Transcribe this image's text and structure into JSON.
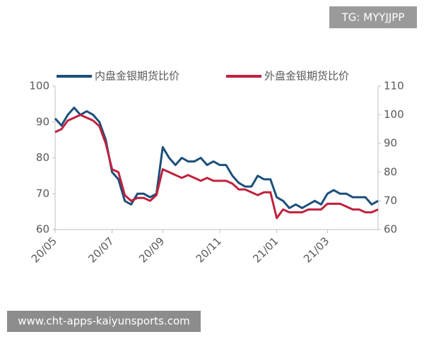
{
  "chart_data": {
    "type": "line",
    "categories": [
      "20/05",
      null,
      null,
      null,
      null,
      null,
      null,
      null,
      null,
      "20/07",
      null,
      null,
      null,
      null,
      null,
      null,
      null,
      "20/09",
      null,
      null,
      null,
      null,
      null,
      null,
      null,
      null,
      "20/11",
      null,
      null,
      null,
      null,
      null,
      null,
      null,
      null,
      "21/01",
      null,
      null,
      null,
      null,
      null,
      null,
      null,
      "21/03",
      null,
      null,
      null,
      null,
      null,
      null,
      null,
      null
    ],
    "series": [
      {
        "name": "内盘金银期货比价",
        "color": "#1b4f7a",
        "axis": "y",
        "values": [
          91,
          89,
          92,
          94,
          92,
          93,
          92,
          90,
          85,
          76,
          74,
          68,
          67,
          70,
          70,
          69,
          70,
          83,
          80,
          78,
          80,
          79,
          79,
          80,
          78,
          79,
          78,
          78,
          75,
          73,
          72,
          72,
          75,
          74,
          74,
          69,
          68,
          66,
          67,
          66,
          67,
          68,
          67,
          70,
          71,
          70,
          70,
          69,
          69,
          69,
          67,
          68
        ]
      },
      {
        "name": "外盘金银期货比价",
        "color": "#c0213e",
        "axis": "y2",
        "values": [
          94,
          95,
          98,
          99,
          100,
          99,
          98,
          96,
          90,
          81,
          80,
          72,
          70,
          71,
          71,
          70,
          72,
          81,
          80,
          79,
          78,
          79,
          78,
          77,
          78,
          77,
          77,
          77,
          76,
          74,
          74,
          73,
          72,
          73,
          73,
          64,
          67,
          66,
          66,
          66,
          67,
          67,
          67,
          69,
          69,
          69,
          68,
          67,
          67,
          66,
          66,
          67
        ]
      }
    ],
    "ylim": [
      60,
      100
    ],
    "yticks": [
      60,
      70,
      80,
      90,
      100
    ],
    "y2lim": [
      60,
      110
    ],
    "y2ticks": [
      60,
      70,
      80,
      90,
      100,
      110
    ],
    "legend": "top"
  },
  "watermarks": {
    "top": "TG: MYYJJPP",
    "bottom": "www.cht-apps-kaiyunsports.com"
  }
}
